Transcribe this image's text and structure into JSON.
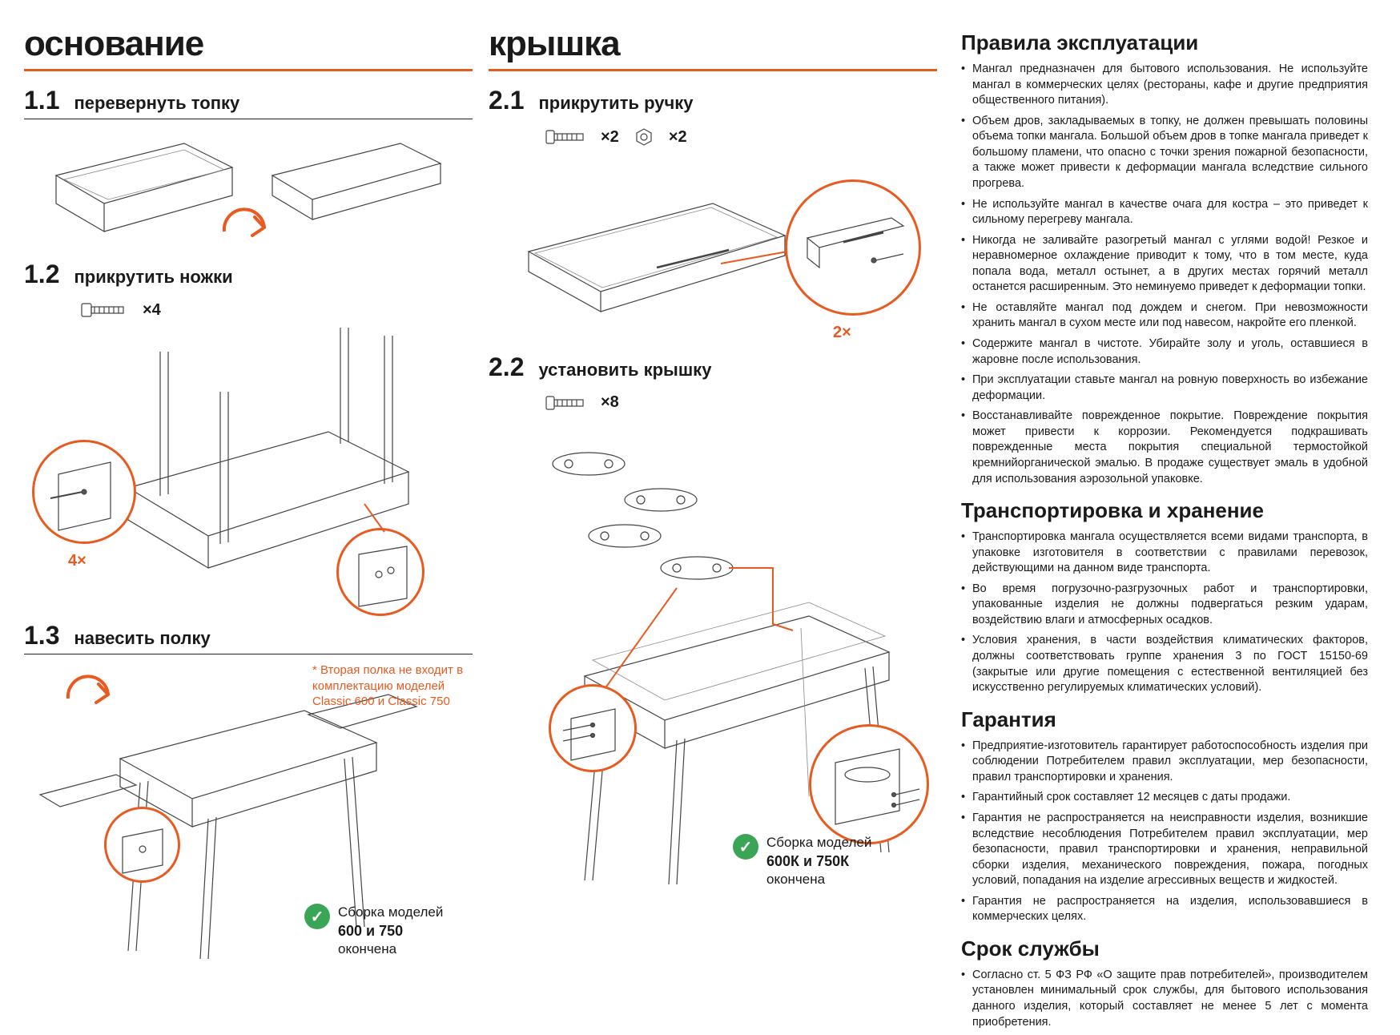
{
  "colors": {
    "accent": "#e85a1f",
    "success": "#3aa655",
    "text": "#1a1a1a",
    "sketch": "#555"
  },
  "left": {
    "title": "основание",
    "steps": {
      "s1": {
        "num": "1.1",
        "label": "перевернуть топку"
      },
      "s2": {
        "num": "1.2",
        "label": "прикрутить ножки",
        "parts_bolt": "×4",
        "callout": "4×"
      },
      "s3": {
        "num": "1.3",
        "label": "навесить полку",
        "footnote": "* Вторая полка не входит в комплектацию моделей Classic 600 и Classic 750"
      }
    },
    "completion": {
      "line1": "Сборка моделей",
      "models": "600 и 750",
      "done": "окончена"
    }
  },
  "mid": {
    "title": "крышка",
    "steps": {
      "s1": {
        "num": "2.1",
        "label": "прикрутить ручку",
        "parts_bolt": "×2",
        "parts_nut": "×2",
        "callout": "2×"
      },
      "s2": {
        "num": "2.2",
        "label": "установить крышку",
        "parts_bolt": "×8"
      }
    },
    "completion": {
      "line1": "Сборка моделей",
      "models": "600К и 750К",
      "done": "окончена"
    }
  },
  "right": {
    "rules_title": "Правила эксплуатации",
    "rules": [
      "Мангал предназначен для бытового использования. Не используйте мангал в коммерческих целях (рестораны, кафе и другие предприятия общественного питания).",
      "Объем дров, закладываемых в топку, не должен превышать половины объема топки мангала. Большой объем дров в топке мангала приведет к большому пламени, что опасно с точки зрения пожарной безопасности, а также может привести к деформации мангала вследствие сильного прогрева.",
      "Не используйте мангал в качестве очага для костра – это приведет к сильному перегреву мангала.",
      "Никогда не заливайте разогретый мангал с углями водой! Резкое и неравномерное охлаждение приводит к тому, что в том месте, куда попала вода, металл остынет, а в других местах горячий металл останется расширенным. Это неминуемо приведет к деформации топки.",
      "Не оставляйте мангал под дождем и снегом. При невозможности хранить мангал в сухом месте или под навесом, накройте его пленкой.",
      "Содержите мангал в чистоте. Убирайте золу и уголь, оставшиеся в жаровне после использования.",
      "При эксплуатации ставьте мангал на ровную поверхность во избежание деформации.",
      "Восстанавливайте поврежденное покрытие. Повреждение покрытия может привести к коррозии. Рекомендуется подкрашивать поврежденные места покрытия специальной термостойкой кремнийорганической эмалью. В продаже существует эмаль в удобной для использования аэрозольной упаковке."
    ],
    "transport_title": "Транспортировка и хранение",
    "transport": [
      "Транспортировка мангала осуществляется всеми видами транспорта, в упаковке изготовителя в соответствии с правилами перевозок, действующими на данном виде транспорта.",
      "Во время погрузочно-разгрузочных работ и транспортировки, упакованные изделия не должны подвергаться резким ударам, воздействию влаги и атмосферных осадков.",
      "Условия хранения, в части воздействия климатических факторов, должны соответствовать группе хранения 3 по ГОСТ 15150-69 (закрытые или другие помещения с естественной вентиляцией без искусственно регулируемых климатических условий)."
    ],
    "warranty_title": "Гарантия",
    "warranty": [
      "Предприятие-изготовитель гарантирует работоспособность изделия при соблюдении Потребителем правил эксплуатации, мер безопасности, правил транспортировки и хранения.",
      "Гарантийный срок составляет 12 месяцев с даты продажи.",
      "Гарантия не распространяется на неисправности изделия, возникшие вследствие несоблюдения Потребителем правил эксплуатации, мер безопасности, правил транспортировки и хранения, неправильной сборки изделия, механического повреждения, пожара, погодных условий, попадания на изделие агрессивных веществ и жидкостей.",
      "Гарантия не распространяется на изделия, использовавшиеся в коммерческих целях."
    ],
    "life_title": "Срок службы",
    "life": [
      "Согласно ст. 5 ФЗ РФ «О защите прав потребителей», производителем установлен минимальный срок службы, для бытового использования данного изделия, который составляет не менее 5 лет с момента приобретения."
    ]
  }
}
